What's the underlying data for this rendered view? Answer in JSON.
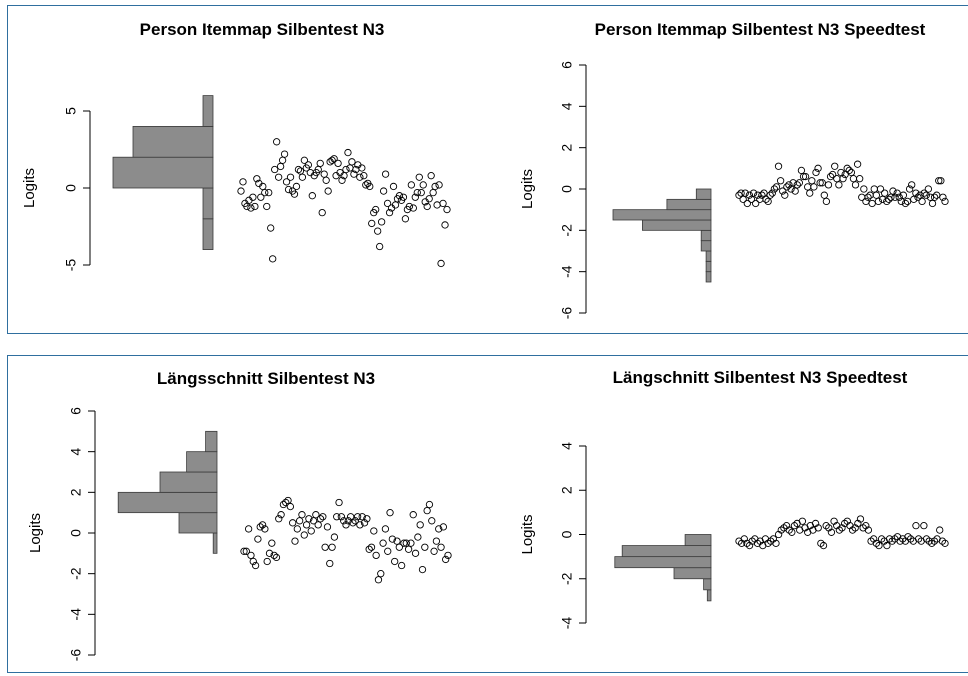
{
  "chart_data": [
    {
      "type": "scatter",
      "title": "Person Itemmap Silbentest N3",
      "ylabel": "Logits",
      "ylim": [
        -5,
        5
      ],
      "yticks": [
        -5,
        0,
        5
      ],
      "histogram": {
        "bins": [
          {
            "from": -4,
            "to": -2,
            "count": 1
          },
          {
            "from": -2,
            "to": 0,
            "count": 1
          },
          {
            "from": 0,
            "to": 2,
            "count": 10
          },
          {
            "from": 2,
            "to": 4,
            "count": 8
          },
          {
            "from": 4,
            "to": 6,
            "count": 1
          }
        ]
      },
      "points": [
        -0.2,
        0.4,
        -1,
        -1.2,
        -0.8,
        -1.3,
        -0.6,
        -1.2,
        0.6,
        0.3,
        -0.6,
        0.1,
        -0.3,
        -1.2,
        -0.3,
        -2.6,
        -4.6,
        1.2,
        3,
        0.7,
        1.4,
        1.8,
        2.2,
        0.4,
        -0.1,
        0.7,
        -0.2,
        -0.4,
        0.1,
        1.2,
        1.1,
        0.7,
        1.8,
        1.3,
        1.5,
        1,
        -0.5,
        0.8,
        1,
        1.2,
        1.6,
        -1.6,
        0.9,
        0.5,
        -0.2,
        1.7,
        1.8,
        1.9,
        0.8,
        1.6,
        1,
        0.5,
        0.8,
        1.2,
        2.3,
        1.3,
        1.7,
        0.9,
        1.2,
        1.5,
        0.7,
        1.3,
        0.8,
        0.2,
        0.3,
        0.1,
        -2.3,
        -1.6,
        -1.4,
        -2.8,
        -3.8,
        -2.2,
        -0.2,
        0.9,
        -1,
        -1.6,
        -1.3,
        0.1,
        -1.1,
        -0.7,
        -0.5,
        -0.8,
        -0.6,
        -2,
        -1.4,
        -1.2,
        0.2,
        -1.3,
        -0.6,
        -0.3,
        0.7,
        -0.3,
        0.2,
        -0.9,
        -1.2,
        -0.7,
        0.8,
        -0.3,
        0.1,
        -1.1,
        0.2,
        -4.9,
        -1,
        -2.4,
        -1.4
      ]
    },
    {
      "type": "scatter",
      "title": "Person Itemmap Silbentest N3 Speedtest",
      "ylabel": "Logits",
      "ylim": [
        -6,
        6
      ],
      "yticks": [
        -6,
        -4,
        -2,
        0,
        2,
        4,
        6
      ],
      "histogram": {
        "bins": [
          {
            "from": -4.5,
            "to": -4,
            "count": 1
          },
          {
            "from": -4,
            "to": -3.5,
            "count": 1
          },
          {
            "from": -3.5,
            "to": -3,
            "count": 1
          },
          {
            "from": -3,
            "to": -2.5,
            "count": 2
          },
          {
            "from": -2.5,
            "to": -2,
            "count": 2
          },
          {
            "from": -2,
            "to": -1.5,
            "count": 14
          },
          {
            "from": -1.5,
            "to": -1,
            "count": 20
          },
          {
            "from": -1,
            "to": -0.5,
            "count": 9
          },
          {
            "from": -0.5,
            "to": 0,
            "count": 3
          }
        ]
      },
      "points": [
        -0.3,
        -0.2,
        -0.5,
        -0.2,
        -0.7,
        -0.3,
        -0.5,
        -0.2,
        -0.7,
        -0.3,
        -0.5,
        -0.3,
        -0.2,
        -0.5,
        -0.6,
        -0.3,
        -0.2,
        0,
        0.1,
        1.1,
        0.4,
        -0.1,
        -0.3,
        0.1,
        0.2,
        0,
        0.3,
        -0.1,
        0.2,
        0.3,
        0.9,
        0.6,
        0.6,
        0.1,
        -0.2,
        0.4,
        0.1,
        0.8,
        1,
        0.3,
        0.3,
        -0.3,
        -0.6,
        0.2,
        0.6,
        0.7,
        1.1,
        0.5,
        0.2,
        0.8,
        0.5,
        0.7,
        1,
        0.9,
        0.8,
        0.5,
        0.2,
        1.2,
        0.5,
        -0.4,
        0,
        -0.6,
        -0.4,
        -0.3,
        -0.7,
        0,
        -0.3,
        -0.6,
        0,
        -0.5,
        -0.2,
        -0.6,
        -0.5,
        -0.4,
        -0.1,
        -0.4,
        -0.2,
        -0.4,
        -0.6,
        -0.3,
        -0.7,
        -0.6,
        0,
        0.2,
        -0.5,
        -0.2,
        -0.4,
        -0.3,
        -0.6,
        -0.2,
        -0.3,
        0,
        -0.4,
        -0.7,
        -0.4,
        -0.3,
        0.4,
        0.4,
        -0.4,
        -0.6
      ]
    },
    {
      "type": "scatter",
      "title": "Längsschnitt Silbentest N3",
      "ylabel": "Logits",
      "ylim": [
        -6,
        6
      ],
      "yticks": [
        -6,
        -4,
        -2,
        0,
        2,
        4,
        6
      ],
      "histogram": {
        "bins": [
          {
            "from": -1,
            "to": 0,
            "count": 1
          },
          {
            "from": 0,
            "to": 1,
            "count": 10
          },
          {
            "from": 1,
            "to": 2,
            "count": 26
          },
          {
            "from": 2,
            "to": 3,
            "count": 15
          },
          {
            "from": 3,
            "to": 4,
            "count": 8
          },
          {
            "from": 4,
            "to": 5,
            "count": 3
          }
        ]
      },
      "points": [
        -0.9,
        -0.9,
        0.2,
        -1.1,
        -1.4,
        -1.6,
        -0.3,
        0.3,
        0.4,
        0.2,
        -1.4,
        -1,
        -0.5,
        -1.1,
        -1.2,
        0.7,
        0.9,
        1.4,
        1.5,
        1.6,
        1.3,
        0.5,
        -0.4,
        0.2,
        0.6,
        0.9,
        -0.1,
        0.4,
        0.7,
        0.1,
        0.6,
        0.9,
        0.4,
        0.7,
        0.8,
        -0.7,
        0.3,
        -1.5,
        -0.7,
        -0.2,
        0.8,
        1.5,
        0.8,
        0.6,
        0.4,
        0.6,
        0.8,
        0.5,
        0.6,
        0.8,
        0.4,
        0.8,
        0.5,
        0.7,
        -0.8,
        -0.7,
        0.1,
        -1.1,
        -2.3,
        -2,
        -0.5,
        0.2,
        -0.9,
        1,
        -0.3,
        -1.4,
        -0.4,
        -0.7,
        -1.6,
        -0.5,
        -0.5,
        -0.8,
        -0.5,
        0.9,
        -1,
        -0.2,
        0.4,
        -1.8,
        -0.7,
        1.1,
        1.4,
        0.6,
        -0.9,
        -0.4,
        0.2,
        -0.7,
        0.3,
        -1.3,
        -1.1
      ]
    },
    {
      "type": "scatter",
      "title": "Längschnitt Silbentest N3 Speedtest",
      "ylabel": "Logits",
      "ylim": [
        -4,
        4
      ],
      "yticks": [
        -4,
        -2,
        0,
        2,
        4
      ],
      "histogram": {
        "bins": [
          {
            "from": -3,
            "to": -2.5,
            "count": 1
          },
          {
            "from": -2.5,
            "to": -2,
            "count": 2
          },
          {
            "from": -2,
            "to": -1.5,
            "count": 10
          },
          {
            "from": -1.5,
            "to": -1,
            "count": 26
          },
          {
            "from": -1,
            "to": -0.5,
            "count": 24
          },
          {
            "from": -0.5,
            "to": 0,
            "count": 7
          }
        ]
      },
      "points": [
        -0.3,
        -0.4,
        -0.2,
        -0.4,
        -0.5,
        -0.3,
        -0.2,
        -0.4,
        -0.3,
        -0.5,
        -0.2,
        -0.4,
        -0.3,
        -0.2,
        -0.4,
        0,
        0.2,
        0.3,
        0.4,
        0.2,
        0.1,
        0.4,
        0.5,
        0.2,
        0.6,
        0.3,
        0.1,
        0.4,
        0.2,
        0.5,
        0.3,
        -0.4,
        -0.5,
        0.4,
        0.3,
        0.1,
        0.6,
        0.4,
        0.2,
        0.3,
        0.5,
        0.6,
        0.4,
        0.2,
        0.3,
        0.5,
        0.7,
        0.3,
        0.4,
        0.2,
        -0.3,
        -0.2,
        -0.4,
        -0.5,
        -0.2,
        -0.3,
        -0.5,
        -0.2,
        -0.3,
        -0.2,
        -0.1,
        -0.3,
        -0.2,
        -0.3,
        -0.1,
        -0.2,
        -0.3,
        0.4,
        -0.2,
        -0.3,
        0.4,
        -0.2,
        -0.3,
        -0.4,
        -0.3,
        -0.2,
        0.2,
        -0.3,
        -0.4
      ]
    }
  ]
}
